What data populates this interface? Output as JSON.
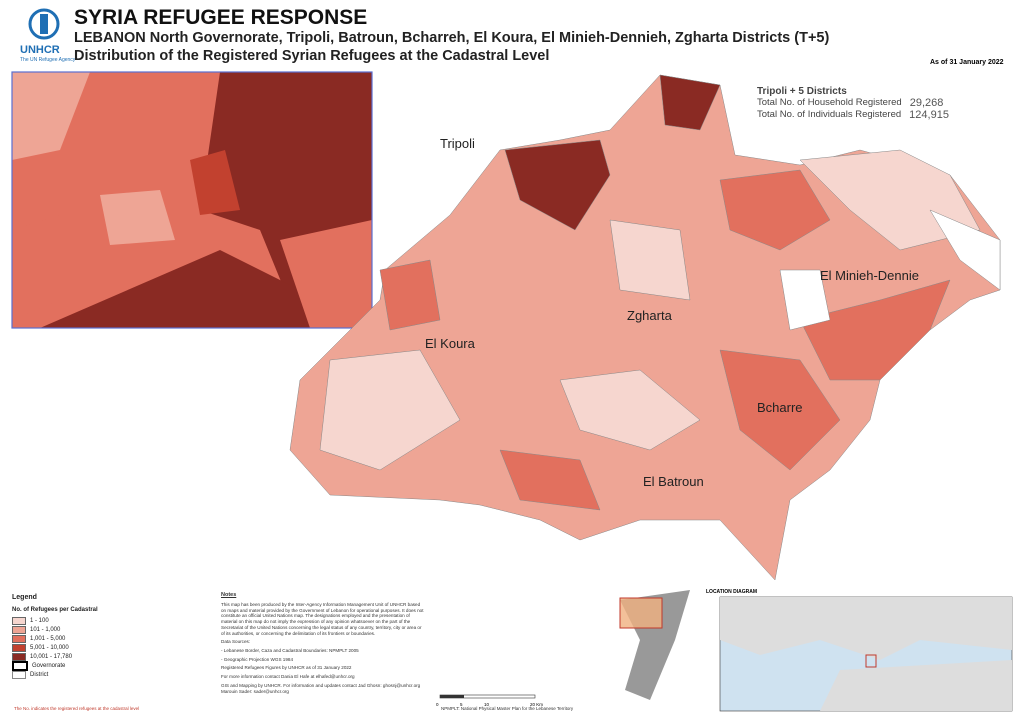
{
  "header": {
    "org": "UNHCR",
    "org_tagline": "The UN Refugee Agency",
    "title": "SYRIA REFUGEE RESPONSE",
    "subtitle": "LEBANON  North Governorate, Tripoli, Batroun, Bcharreh, El Koura, El Minieh-Dennieh, Zgharta Districts (T+5)",
    "map_title": "Distribution of the Registered Syrian Refugees at the Cadastral Level",
    "date": "As of 31 January 2022"
  },
  "summary": {
    "heading": "Tripoli + 5 Districts",
    "rows": [
      {
        "label": "Total No. of Household Registered",
        "value": "29,268"
      },
      {
        "label": "Total No. of Individuals Registered",
        "value": "124,915"
      }
    ]
  },
  "regions": [
    "Tripoli",
    "El Minieh-Dennie",
    "Zgharta",
    "El Koura",
    "Bcharre",
    "El Batroun"
  ],
  "legend": {
    "title": "Legend",
    "subtitle": "No. of Refugees per Cadastral",
    "classes": [
      {
        "label": "1 - 100",
        "color": "#f6d6cf"
      },
      {
        "label": "101 - 1,000",
        "color": "#eea595"
      },
      {
        "label": "1,001 - 5,000",
        "color": "#e2705e"
      },
      {
        "label": "5,001 - 10,000",
        "color": "#c2412f"
      },
      {
        "label": "10,001 - 17,780",
        "color": "#8a2a23"
      }
    ],
    "boundaries": [
      "Governorate",
      "District"
    ]
  },
  "notes": {
    "heading": "Notes",
    "paragraphs": [
      "This map has been produced by the Inter-Agency Information Management Unit of UNHCR based on maps and material provided by the Government of Lebanon for operational purposes. It does not constitute an official United Nations map. The designations employed and the presentation of material on this map do not imply the expression of any opinion whatsoever on the part of the Secretariat of the United Nations concerning the legal status of any country, territory, city or area or of its authorities, or concerning the delimitation of its frontiers or boundaries.",
      "Data Sources:",
      "- Lebanese Border, Caza and Cadastral Boundaries: NPMPLT 2005",
      "- Geographic Projection WGS 1984",
      "Registered Refugees Figures by UNHCR as of 31 January 2022",
      "For more information contact Dania El Hafe at elhafed@unhcr.org",
      "GIS and Mapping by UNHCR. For information and updates contact Jad Ghosn: ghosnj@unhcr.org Marouin Sader: sader@unhcr.org"
    ]
  },
  "scale": {
    "ticks": [
      "0",
      "5",
      "10",
      "20 Km"
    ],
    "source_note": "NPMPLT: National Physical Master Plan for the Lebanese Territory"
  },
  "location_diagram": {
    "heading": "LOCATION DIAGRAM"
  },
  "footer": "The No. indicates the registered refugees at the cadastral level"
}
